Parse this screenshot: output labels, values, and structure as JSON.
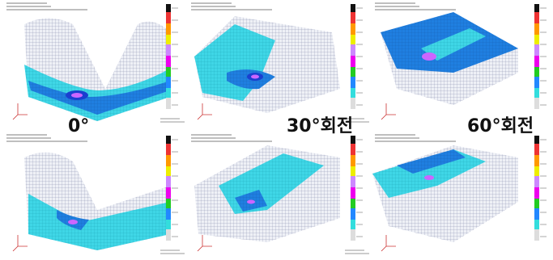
{
  "labels": [
    "0°",
    "30°회전",
    "60°회전"
  ]
}
